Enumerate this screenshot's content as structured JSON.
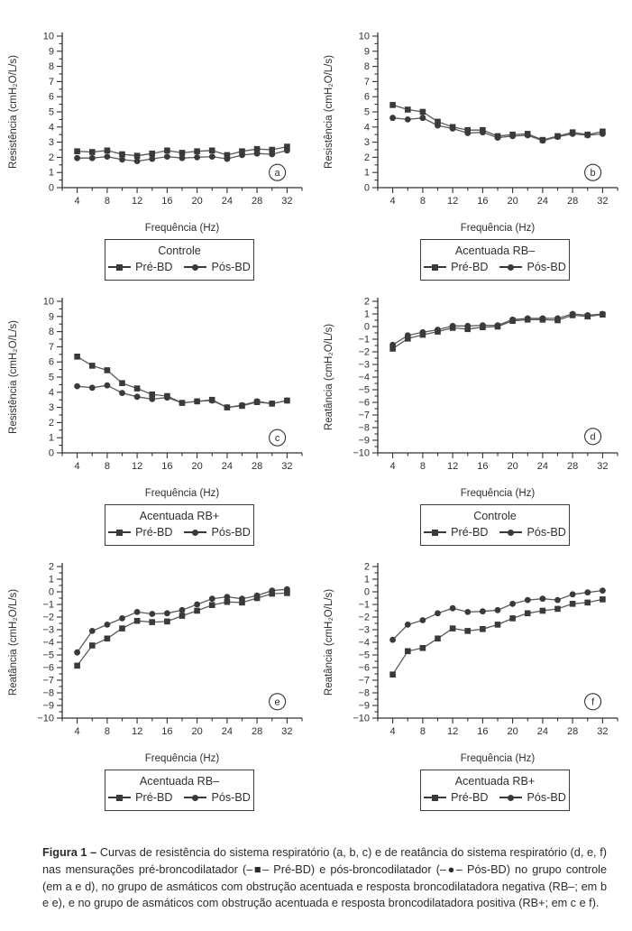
{
  "figure": {
    "caption_label": "Figura 1 –",
    "caption_text": " Curvas de resistência do sistema respiratório (a, b, c) e de reatância do sistema respiratório (d, e, f) nas mensurações pré-broncodilatador (–■– Pré-BD) e pós-broncodilatador (–●– Pós-BD) no grupo controle (em a e d), no grupo de asmáticos com obstrução acentuada e resposta broncodilatadora negativa (RB–; em b e e), e no grupo de asmáticos com obstrução acentuada e resposta broncodilatadora positiva (RB+; em c e f)."
  },
  "colors": {
    "marker": "#3a3a3a",
    "line": "#5a5a5a",
    "axis": "#333333",
    "text": "#2f2f2f"
  },
  "chart_data": [
    {
      "id": "a",
      "type": "line",
      "panel_label": "a",
      "title": "",
      "legend_title": "Controle",
      "legend_position": "below",
      "grid": false,
      "xlabel": "Frequência (Hz)",
      "ylabel": "Resistência (cmH₂O/L/s)",
      "xlim": [
        2,
        34
      ],
      "ylim": [
        0,
        10
      ],
      "xticks_major": [
        4,
        8,
        12,
        16,
        20,
        24,
        28,
        32
      ],
      "xticks_minor": [
        2,
        6,
        10,
        14,
        18,
        22,
        26,
        30,
        34
      ],
      "ytick_step": 1,
      "ytick_minor_step": 0.5,
      "panel_label_x": 30.7,
      "panel_label_y": 1.0,
      "x": [
        4,
        6,
        8,
        10,
        12,
        14,
        16,
        18,
        20,
        22,
        24,
        26,
        28,
        30,
        32
      ],
      "series": [
        {
          "name": "Pré-BD",
          "marker": "square",
          "values": [
            2.4,
            2.35,
            2.45,
            2.2,
            2.1,
            2.25,
            2.45,
            2.3,
            2.4,
            2.45,
            2.15,
            2.4,
            2.55,
            2.5,
            2.7
          ]
        },
        {
          "name": "Pós-BD",
          "marker": "circle",
          "values": [
            1.95,
            1.95,
            2.05,
            1.85,
            1.75,
            1.9,
            2.05,
            1.95,
            2.0,
            2.05,
            1.9,
            2.15,
            2.25,
            2.2,
            2.45
          ]
        }
      ]
    },
    {
      "id": "b",
      "type": "line",
      "panel_label": "b",
      "title": "",
      "legend_title": "Acentuada RB–",
      "legend_position": "below",
      "grid": false,
      "xlabel": "Frequência (Hz)",
      "ylabel": "Resistência (cmH₂O/L/s)",
      "xlim": [
        2,
        34
      ],
      "ylim": [
        0,
        10
      ],
      "xticks_major": [
        4,
        8,
        12,
        16,
        20,
        24,
        28,
        32
      ],
      "xticks_minor": [
        2,
        6,
        10,
        14,
        18,
        22,
        26,
        30,
        34
      ],
      "ytick_step": 1,
      "ytick_minor_step": 0.5,
      "panel_label_x": 30.7,
      "panel_label_y": 1.0,
      "x": [
        4,
        6,
        8,
        10,
        12,
        14,
        16,
        18,
        20,
        22,
        24,
        26,
        28,
        30,
        32
      ],
      "series": [
        {
          "name": "Pré-BD",
          "marker": "square",
          "values": [
            5.45,
            5.15,
            5.0,
            4.35,
            4.0,
            3.8,
            3.8,
            3.4,
            3.5,
            3.55,
            3.15,
            3.4,
            3.65,
            3.5,
            3.7
          ]
        },
        {
          "name": "Pós-BD",
          "marker": "circle",
          "values": [
            4.6,
            4.5,
            4.6,
            4.1,
            3.9,
            3.6,
            3.65,
            3.3,
            3.4,
            3.45,
            3.1,
            3.35,
            3.55,
            3.45,
            3.55
          ]
        }
      ]
    },
    {
      "id": "c",
      "type": "line",
      "panel_label": "c",
      "title": "",
      "legend_title": "Acentuada RB+",
      "legend_position": "below",
      "grid": false,
      "xlabel": "Frequência (Hz)",
      "ylabel": "Resistência (cmH₂O/L/s)",
      "xlim": [
        2,
        34
      ],
      "ylim": [
        0,
        10
      ],
      "xticks_major": [
        4,
        8,
        12,
        16,
        20,
        24,
        28,
        32
      ],
      "xticks_minor": [
        2,
        6,
        10,
        14,
        18,
        22,
        26,
        30,
        34
      ],
      "ytick_step": 1,
      "ytick_minor_step": 0.5,
      "panel_label_x": 30.7,
      "panel_label_y": 1.0,
      "x": [
        4,
        6,
        8,
        10,
        12,
        14,
        16,
        18,
        20,
        22,
        24,
        26,
        28,
        30,
        32
      ],
      "series": [
        {
          "name": "Pré-BD",
          "marker": "square",
          "values": [
            6.35,
            5.75,
            5.45,
            4.6,
            4.25,
            3.85,
            3.75,
            3.3,
            3.4,
            3.5,
            3.0,
            3.1,
            3.35,
            3.25,
            3.45
          ]
        },
        {
          "name": "Pós-BD",
          "marker": "circle",
          "values": [
            4.4,
            4.3,
            4.45,
            3.95,
            3.7,
            3.55,
            3.65,
            3.3,
            3.4,
            3.45,
            3.0,
            3.15,
            3.4,
            3.25,
            3.45
          ]
        }
      ]
    },
    {
      "id": "d",
      "type": "line",
      "panel_label": "d",
      "title": "",
      "legend_title": "Controle",
      "legend_position": "below",
      "grid": false,
      "xlabel": "Frequência (Hz)",
      "ylabel": "Reatância (cmH₂O/L/s)",
      "xlim": [
        2,
        34
      ],
      "ylim": [
        -10,
        2
      ],
      "xticks_major": [
        4,
        8,
        12,
        16,
        20,
        24,
        28,
        32
      ],
      "xticks_minor": [
        2,
        6,
        10,
        14,
        18,
        22,
        26,
        30,
        34
      ],
      "ytick_step": 1,
      "ytick_minor_step": 0.5,
      "panel_label_x": 30.7,
      "panel_label_y": -8.7,
      "x": [
        4,
        6,
        8,
        10,
        12,
        14,
        16,
        18,
        20,
        22,
        24,
        26,
        28,
        30,
        32
      ],
      "series": [
        {
          "name": "Pré-BD",
          "marker": "square",
          "values": [
            -1.75,
            -0.95,
            -0.65,
            -0.4,
            -0.1,
            -0.2,
            -0.05,
            0.0,
            0.45,
            0.55,
            0.55,
            0.5,
            0.9,
            0.8,
            0.95
          ]
        },
        {
          "name": "Pós-BD",
          "marker": "circle",
          "values": [
            -1.45,
            -0.7,
            -0.45,
            -0.25,
            0.05,
            0.05,
            0.1,
            0.1,
            0.55,
            0.65,
            0.65,
            0.65,
            1.0,
            0.9,
            1.0
          ]
        }
      ]
    },
    {
      "id": "e",
      "type": "line",
      "panel_label": "e",
      "title": "",
      "legend_title": "Acentuada RB–",
      "legend_position": "below",
      "grid": false,
      "xlabel": "Frequência (Hz)",
      "ylabel": "Reatância (cmH₂O/L/s)",
      "xlim": [
        2,
        34
      ],
      "ylim": [
        -10,
        2
      ],
      "xticks_major": [
        4,
        8,
        12,
        16,
        20,
        24,
        28,
        32
      ],
      "xticks_minor": [
        2,
        6,
        10,
        14,
        18,
        22,
        26,
        30,
        34
      ],
      "ytick_step": 1,
      "ytick_minor_step": 0.5,
      "panel_label_x": 30.7,
      "panel_label_y": -8.7,
      "x": [
        4,
        6,
        8,
        10,
        12,
        14,
        16,
        18,
        20,
        22,
        24,
        26,
        28,
        30,
        32
      ],
      "series": [
        {
          "name": "Pré-BD",
          "marker": "square",
          "values": [
            -5.85,
            -4.25,
            -3.7,
            -2.9,
            -2.3,
            -2.4,
            -2.35,
            -1.9,
            -1.5,
            -1.05,
            -0.8,
            -0.85,
            -0.5,
            -0.15,
            -0.1
          ]
        },
        {
          "name": "Pós-BD",
          "marker": "circle",
          "values": [
            -4.8,
            -3.1,
            -2.6,
            -2.1,
            -1.6,
            -1.75,
            -1.7,
            -1.45,
            -1.0,
            -0.55,
            -0.4,
            -0.55,
            -0.3,
            0.1,
            0.2
          ]
        }
      ]
    },
    {
      "id": "f",
      "type": "line",
      "panel_label": "f",
      "title": "",
      "legend_title": "Acentuada RB+",
      "legend_position": "below",
      "grid": false,
      "xlabel": "Frequência (Hz)",
      "ylabel": "Reatância (cmH₂O/L/s)",
      "xlim": [
        2,
        34
      ],
      "ylim": [
        -10,
        2
      ],
      "xticks_major": [
        4,
        8,
        12,
        16,
        20,
        24,
        28,
        32
      ],
      "xticks_minor": [
        2,
        6,
        10,
        14,
        18,
        22,
        26,
        30,
        34
      ],
      "ytick_step": 1,
      "ytick_minor_step": 0.5,
      "panel_label_x": 30.7,
      "panel_label_y": -8.7,
      "x": [
        4,
        6,
        8,
        10,
        12,
        14,
        16,
        18,
        20,
        22,
        24,
        26,
        28,
        30,
        32
      ],
      "series": [
        {
          "name": "Pré-BD",
          "marker": "square",
          "values": [
            -6.55,
            -4.7,
            -4.45,
            -3.7,
            -2.9,
            -3.1,
            -2.95,
            -2.6,
            -2.1,
            -1.7,
            -1.5,
            -1.35,
            -0.95,
            -0.85,
            -0.6
          ]
        },
        {
          "name": "Pós-BD",
          "marker": "circle",
          "values": [
            -3.8,
            -2.6,
            -2.25,
            -1.7,
            -1.3,
            -1.6,
            -1.55,
            -1.45,
            -0.95,
            -0.65,
            -0.55,
            -0.65,
            -0.2,
            -0.05,
            0.1
          ]
        }
      ]
    }
  ]
}
